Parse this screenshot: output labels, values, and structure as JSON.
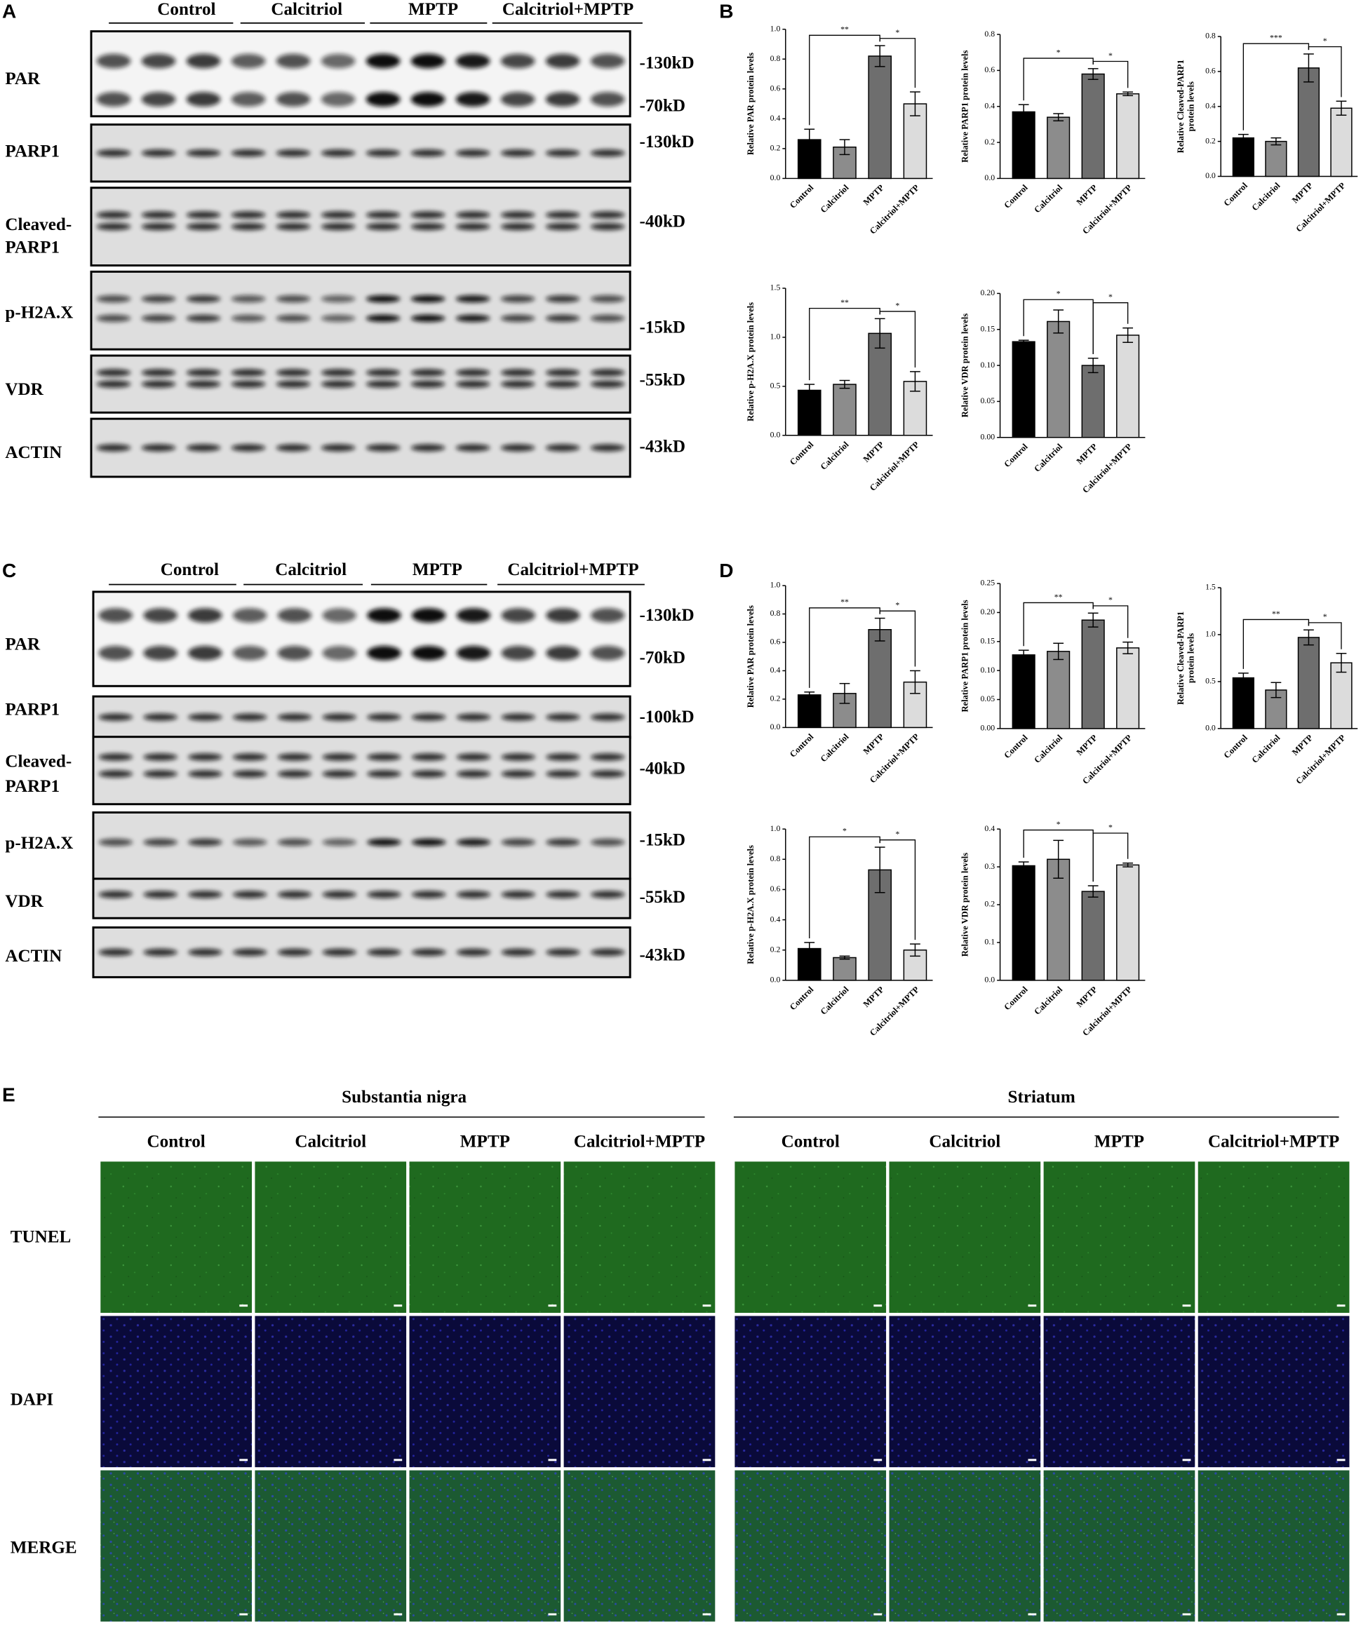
{
  "labels": {
    "A": "A",
    "B": "B",
    "C": "C",
    "D": "D",
    "E": "E"
  },
  "blot_A": {
    "groups": [
      "Control",
      "Calcitriol",
      "MPTP",
      "Calcitriol+MPTP"
    ],
    "rows": [
      {
        "name": [
          "PAR"
        ],
        "sizes": [
          "-130kD",
          "-70kD"
        ]
      },
      {
        "name": [
          "PARP1"
        ],
        "sizes": [
          "-130kD"
        ]
      },
      {
        "name": [
          "Cleaved-",
          "PARP1"
        ],
        "sizes": [
          "-40kD"
        ]
      },
      {
        "name": [
          "p-H2A.X"
        ],
        "sizes": [
          "-15kD"
        ]
      },
      {
        "name": [
          "VDR"
        ],
        "sizes": [
          "-55kD"
        ]
      },
      {
        "name": [
          "ACTIN"
        ],
        "sizes": [
          "-43kD"
        ]
      }
    ]
  },
  "blot_C": {
    "groups": [
      "Control",
      "Calcitriol",
      "MPTP",
      "Calcitriol+MPTP"
    ],
    "rows": [
      {
        "name": [
          "PAR"
        ],
        "sizes": [
          "-130kD",
          "-70kD"
        ]
      },
      {
        "name": [
          "PARP1"
        ],
        "sizes": [
          "-100kD"
        ]
      },
      {
        "name": [
          "Cleaved-",
          "PARP1"
        ],
        "sizes": [
          "-40kD"
        ]
      },
      {
        "name": [
          "p-H2A.X"
        ],
        "sizes": [
          "-15kD"
        ]
      },
      {
        "name": [
          "VDR"
        ],
        "sizes": [
          "-55kD"
        ]
      },
      {
        "name": [
          "ACTIN"
        ],
        "sizes": [
          "-43kD"
        ]
      }
    ]
  },
  "panel_E": {
    "regions": [
      {
        "name": "Substantia nigra",
        "groups": [
          "Control",
          "Calcitriol",
          "MPTP",
          "Calcitriol+MPTP"
        ]
      },
      {
        "name": "Striatum",
        "groups": [
          "Control",
          "Calcitriol",
          "MPTP",
          "Calcitriol+MPTP"
        ]
      }
    ],
    "rows": [
      "TUNEL",
      "DAPI",
      "MERGE"
    ]
  },
  "chart_data": [
    {
      "type": "bar",
      "ylabel": [
        "Relative PAR protein levels"
      ],
      "categories": [
        "Control",
        "Calcitriol",
        "MPTP",
        "Calcitriol+MPTP"
      ],
      "values": [
        0.26,
        0.21,
        0.82,
        0.5
      ],
      "errors": [
        0.07,
        0.05,
        0.07,
        0.08
      ],
      "colors": [
        "#000000",
        "#8c8c8c",
        "#6e6e6e",
        "#dcdcdc"
      ],
      "ylim": [
        0,
        1
      ],
      "yticks": [
        {
          "value": 0,
          "label": "0.0"
        },
        0.2,
        0.4,
        0.6,
        0.8,
        {
          "value": 1,
          "label": "1.0"
        }
      ],
      "annotations": [
        "**",
        "*"
      ]
    },
    {
      "type": "bar",
      "ylabel": [
        "Relative PARP1 protein levels"
      ],
      "categories": [
        "Control",
        "Calcitriol",
        "MPTP",
        "Calcitriol+MPTP"
      ],
      "values": [
        0.37,
        0.34,
        0.58,
        0.47
      ],
      "errors": [
        0.04,
        0.02,
        0.03,
        0.01
      ],
      "colors": [
        "#000000",
        "#8c8c8c",
        "#6e6e6e",
        "#dcdcdc"
      ],
      "ylim": [
        0,
        0.8
      ],
      "yticks": [
        {
          "value": 0,
          "label": "0.0"
        },
        0.2,
        0.4,
        0.6,
        0.8
      ],
      "annotations": [
        "*",
        "*"
      ]
    },
    {
      "type": "bar",
      "ylabel": [
        "Relative Cleaved-PARP1",
        "protein levels"
      ],
      "categories": [
        "Control",
        "Calcitriol",
        "MPTP",
        "Calcitriol+MPTP"
      ],
      "values": [
        0.22,
        0.2,
        0.62,
        0.39
      ],
      "errors": [
        0.02,
        0.02,
        0.08,
        0.04
      ],
      "colors": [
        "#000000",
        "#8c8c8c",
        "#6e6e6e",
        "#dcdcdc"
      ],
      "ylim": [
        0,
        0.8
      ],
      "yticks": [
        {
          "value": 0,
          "label": "0.0"
        },
        0.2,
        0.4,
        0.6,
        0.8
      ],
      "annotations": [
        "***",
        "*"
      ]
    },
    {
      "type": "bar",
      "ylabel": [
        "Relative p-H2A.X protein levels"
      ],
      "categories": [
        "Control",
        "Calcitriol",
        "MPTP",
        "Calcitriol+MPTP"
      ],
      "values": [
        0.46,
        0.52,
        1.04,
        0.55
      ],
      "errors": [
        0.06,
        0.04,
        0.15,
        0.1
      ],
      "colors": [
        "#000000",
        "#8c8c8c",
        "#6e6e6e",
        "#dcdcdc"
      ],
      "ylim": [
        0,
        1.5
      ],
      "yticks": [
        {
          "value": 0,
          "label": "0.0"
        },
        0.5,
        {
          "value": 1,
          "label": "1.0"
        },
        1.5
      ],
      "annotations": [
        "**",
        "*"
      ]
    },
    {
      "type": "bar",
      "ylabel": [
        "Relative VDR protein levels"
      ],
      "categories": [
        "Control",
        "Calcitriol",
        "MPTP",
        "Calcitriol+MPTP"
      ],
      "values": [
        0.133,
        0.161,
        0.1,
        0.142
      ],
      "errors": [
        0.002,
        0.016,
        0.01,
        0.01
      ],
      "colors": [
        "#000000",
        "#8c8c8c",
        "#6e6e6e",
        "#dcdcdc"
      ],
      "ylim": [
        0,
        0.2
      ],
      "yticks": [
        {
          "value": 0,
          "label": "0.00"
        },
        0.05,
        {
          "value": 0.1,
          "label": "0.10"
        },
        0.15,
        {
          "value": 0.2,
          "label": "0.20"
        }
      ],
      "annotations": [
        "*",
        "*"
      ]
    },
    {
      "type": "bar",
      "ylabel": [
        "Relative PAR protein levels"
      ],
      "categories": [
        "Control",
        "Calcitriol",
        "MPTP",
        "Calcitriol+MPTP"
      ],
      "values": [
        0.23,
        0.24,
        0.69,
        0.32
      ],
      "errors": [
        0.02,
        0.07,
        0.08,
        0.08
      ],
      "colors": [
        "#000000",
        "#8c8c8c",
        "#6e6e6e",
        "#dcdcdc"
      ],
      "ylim": [
        0,
        1
      ],
      "yticks": [
        {
          "value": 0,
          "label": "0.0"
        },
        0.2,
        0.4,
        0.6,
        0.8,
        {
          "value": 1,
          "label": "1.0"
        }
      ],
      "annotations": [
        "**",
        "*"
      ]
    },
    {
      "type": "bar",
      "ylabel": [
        "Relative PARP1 protein levels"
      ],
      "categories": [
        "Control",
        "Calcitriol",
        "MPTP",
        "Calcitriol+MPTP"
      ],
      "values": [
        0.127,
        0.133,
        0.187,
        0.139
      ],
      "errors": [
        0.008,
        0.014,
        0.012,
        0.01
      ],
      "colors": [
        "#000000",
        "#8c8c8c",
        "#6e6e6e",
        "#dcdcdc"
      ],
      "ylim": [
        0,
        0.25
      ],
      "yticks": [
        {
          "value": 0,
          "label": "0.00"
        },
        0.05,
        {
          "value": 0.1,
          "label": "0.10"
        },
        0.15,
        {
          "value": 0.2,
          "label": "0.20"
        },
        0.25
      ],
      "annotations": [
        "**",
        "*"
      ]
    },
    {
      "type": "bar",
      "ylabel": [
        "Relative Cleaved-PARP1",
        "protein levels"
      ],
      "categories": [
        "Control",
        "Calcitriol",
        "MPTP",
        "Calcitriol+MPTP"
      ],
      "values": [
        0.54,
        0.41,
        0.97,
        0.7
      ],
      "errors": [
        0.05,
        0.08,
        0.08,
        0.1
      ],
      "colors": [
        "#000000",
        "#8c8c8c",
        "#6e6e6e",
        "#dcdcdc"
      ],
      "ylim": [
        0,
        1.5
      ],
      "yticks": [
        {
          "value": 0,
          "label": "0.0"
        },
        0.5,
        {
          "value": 1,
          "label": "1.0"
        },
        1.5
      ],
      "annotations": [
        "**",
        "*"
      ]
    },
    {
      "type": "bar",
      "ylabel": [
        "Relative p-H2A.X protein levels"
      ],
      "categories": [
        "Control",
        "Calcitriol",
        "MPTP",
        "Calcitriol+MPTP"
      ],
      "values": [
        0.21,
        0.15,
        0.73,
        0.2
      ],
      "errors": [
        0.04,
        0.01,
        0.15,
        0.04
      ],
      "colors": [
        "#000000",
        "#8c8c8c",
        "#6e6e6e",
        "#dcdcdc"
      ],
      "ylim": [
        0,
        1
      ],
      "yticks": [
        {
          "value": 0,
          "label": "0.0"
        },
        0.2,
        0.4,
        0.6,
        0.8,
        {
          "value": 1,
          "label": "1.0"
        }
      ],
      "annotations": [
        "*",
        "*"
      ]
    },
    {
      "type": "bar",
      "ylabel": [
        "Relative VDR protein levels"
      ],
      "categories": [
        "Control",
        "Calcitriol",
        "MPTP",
        "Calcitriol+MPTP"
      ],
      "values": [
        0.303,
        0.32,
        0.235,
        0.305
      ],
      "errors": [
        0.01,
        0.05,
        0.015,
        0.005
      ],
      "colors": [
        "#000000",
        "#8c8c8c",
        "#6e6e6e",
        "#dcdcdc"
      ],
      "ylim": [
        0,
        0.4
      ],
      "yticks": [
        {
          "value": 0,
          "label": "0.0"
        },
        0.1,
        0.2,
        0.3,
        0.4
      ],
      "annotations": [
        "*",
        "*"
      ]
    }
  ]
}
